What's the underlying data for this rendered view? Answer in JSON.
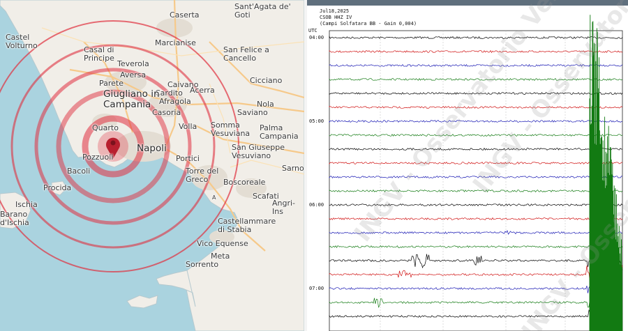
{
  "map": {
    "towns": [
      {
        "id": "caserta",
        "label": "Caserta",
        "big": false
      },
      {
        "id": "santagata",
        "label": "Sant'Agata de'\nGoti",
        "big": false
      },
      {
        "id": "castel-volturno",
        "label": "Castel\nVolturno",
        "big": false
      },
      {
        "id": "marcianise",
        "label": "Marcianise",
        "big": false
      },
      {
        "id": "san-felice",
        "label": "San Felice a\nCancello",
        "big": false
      },
      {
        "id": "casal-di-principe",
        "label": "Casal di\nPrincipe",
        "big": false
      },
      {
        "id": "teverola",
        "label": "Teverola",
        "big": false
      },
      {
        "id": "aversa",
        "label": "Aversa",
        "big": false
      },
      {
        "id": "cicciano",
        "label": "Cicciano",
        "big": false
      },
      {
        "id": "parete",
        "label": "Parete",
        "big": false
      },
      {
        "id": "caivano",
        "label": "Caivano",
        "big": false
      },
      {
        "id": "cardito",
        "label": "Cardito",
        "big": false
      },
      {
        "id": "acerra",
        "label": "Acerra",
        "big": false
      },
      {
        "id": "giugliano",
        "label": "Giugliano in\nCampania",
        "big": true
      },
      {
        "id": "afragola",
        "label": "Afragola",
        "big": false
      },
      {
        "id": "nola",
        "label": "Nola",
        "big": false
      },
      {
        "id": "saviano",
        "label": "Saviano",
        "big": false
      },
      {
        "id": "casoria",
        "label": "Casoria",
        "big": false
      },
      {
        "id": "quarto",
        "label": "Quarto",
        "big": false
      },
      {
        "id": "volla",
        "label": "Volla",
        "big": false
      },
      {
        "id": "somma",
        "label": "Somma\nVesuviana",
        "big": false
      },
      {
        "id": "palma",
        "label": "Palma\nCampania",
        "big": false
      },
      {
        "id": "napoli",
        "label": "Napoli",
        "big": true
      },
      {
        "id": "san-giuseppe",
        "label": "San Giuseppe\nVesuviano",
        "big": false
      },
      {
        "id": "pozzuoli",
        "label": "Pozzuoli",
        "big": false
      },
      {
        "id": "bacoli",
        "label": "Bacoli",
        "big": false
      },
      {
        "id": "portici",
        "label": "Portici",
        "big": false
      },
      {
        "id": "torre-del-greco",
        "label": "Torre del\nGreco",
        "big": false
      },
      {
        "id": "sarno",
        "label": "Sarno",
        "big": false
      },
      {
        "id": "procida",
        "label": "Procida",
        "big": false
      },
      {
        "id": "boscoreale",
        "label": "Boscoreale",
        "big": false
      },
      {
        "id": "scafati",
        "label": "Scafati",
        "big": false
      },
      {
        "id": "ischia",
        "label": "Ischia",
        "big": false
      },
      {
        "id": "barano",
        "label": "Barano\nd'Ischia",
        "big": false
      },
      {
        "id": "angri",
        "label": "Angri-Ins",
        "big": false
      },
      {
        "id": "castellammare",
        "label": "Castellammare\ndi Stabia",
        "big": false
      },
      {
        "id": "vico-equense",
        "label": "Vico Equense",
        "big": false
      },
      {
        "id": "meta",
        "label": "Meta",
        "big": false
      },
      {
        "id": "sorrento",
        "label": "Sorrento",
        "big": false
      }
    ],
    "road_marker": "A",
    "colors": {
      "sea": "#aad3df",
      "land": "#f1eee8",
      "urban": "#e3ddd3",
      "ring": "#e0303f",
      "pin": "#d7263d",
      "road": "#f6c98a"
    }
  },
  "seismogram": {
    "date": "Jul18,2025",
    "station": "CSOB HHZ IV",
    "station_detail": "(Campi Solfatara BB  - Gain 0,004)",
    "timezone": "UTC",
    "time_labels": [
      "04:00",
      "05:00",
      "06:00",
      "07:00"
    ],
    "watermark": "INGV - Osservatorio Vesuviano",
    "trace_colors": [
      "#000000",
      "#d01010",
      "#1a1ab4",
      "#127a12"
    ]
  }
}
